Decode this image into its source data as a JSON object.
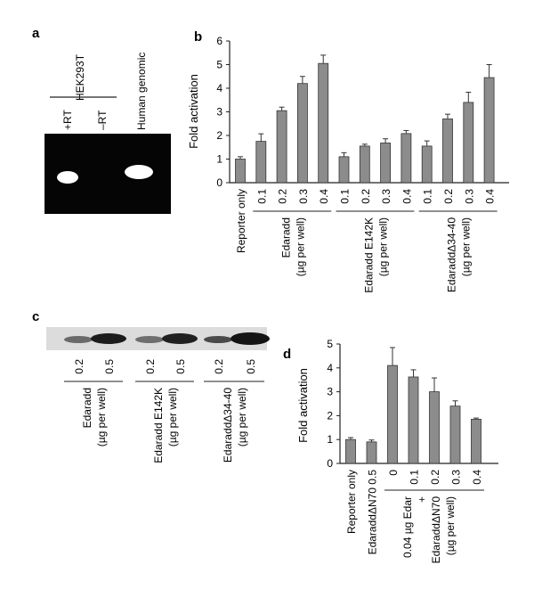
{
  "panels": {
    "a": {
      "letter": "a",
      "group_label": "HEK293T",
      "lanes": [
        "+RT",
        "–RT",
        "Human genomic"
      ]
    },
    "c": {
      "letter": "c",
      "lane_values": [
        "0.2",
        "0.5",
        "0.2",
        "0.5",
        "0.2",
        "0.5"
      ],
      "groups": [
        {
          "name": "Edaradd",
          "sub": "(µg per well)"
        },
        {
          "name": "Edaradd E142K",
          "sub": "(µg per well)"
        },
        {
          "name": "EdaraddΔ34-40",
          "sub": "(µg per well)"
        }
      ]
    }
  },
  "chart_data": [
    {
      "panel": "b",
      "type": "bar",
      "ylabel": "Fold activation",
      "ylim": [
        0,
        6
      ],
      "yticks": [
        "0",
        "1",
        "2",
        "3",
        "4",
        "5",
        "6"
      ],
      "grid": false,
      "categories": [
        "Reporter only",
        "0.1",
        "0.2",
        "0.3",
        "0.4",
        "0.1",
        "0.2",
        "0.3",
        "0.4",
        "0.1",
        "0.2",
        "0.3",
        "0.4"
      ],
      "values": [
        1.0,
        1.75,
        3.05,
        4.2,
        5.05,
        1.1,
        1.55,
        1.68,
        2.08,
        1.55,
        2.7,
        3.4,
        4.45
      ],
      "errors": [
        0.1,
        0.32,
        0.15,
        0.3,
        0.35,
        0.17,
        0.08,
        0.18,
        0.13,
        0.22,
        0.2,
        0.43,
        0.55
      ],
      "groups": [
        {
          "name": "Edaradd",
          "sub": "(µg per well)"
        },
        {
          "name": "Edaradd E142K",
          "sub": "(µg per well)"
        },
        {
          "name": "EdaraddΔ34-40",
          "sub": "(µg per well)"
        }
      ],
      "bar_color": "#8c8c8c"
    },
    {
      "panel": "d",
      "type": "bar",
      "ylabel": "Fold activation",
      "ylim": [
        0,
        5
      ],
      "yticks": [
        "0",
        "1",
        "2",
        "3",
        "4",
        "5"
      ],
      "grid": false,
      "categories": [
        "Reporter only",
        "EdaraddΔN70 0.5",
        "0",
        "0.1",
        "0.2",
        "0.3",
        "0.4"
      ],
      "values": [
        1.0,
        0.9,
        4.1,
        3.62,
        3.0,
        2.4,
        1.85
      ],
      "errors": [
        0.08,
        0.08,
        0.75,
        0.3,
        0.58,
        0.22,
        0.05
      ],
      "group": {
        "line1": "0.04 µg Edar",
        "line2": "+",
        "line3": "EdaraddΔN70",
        "line4": "(µg per well)"
      },
      "bar_color": "#8c8c8c"
    }
  ]
}
